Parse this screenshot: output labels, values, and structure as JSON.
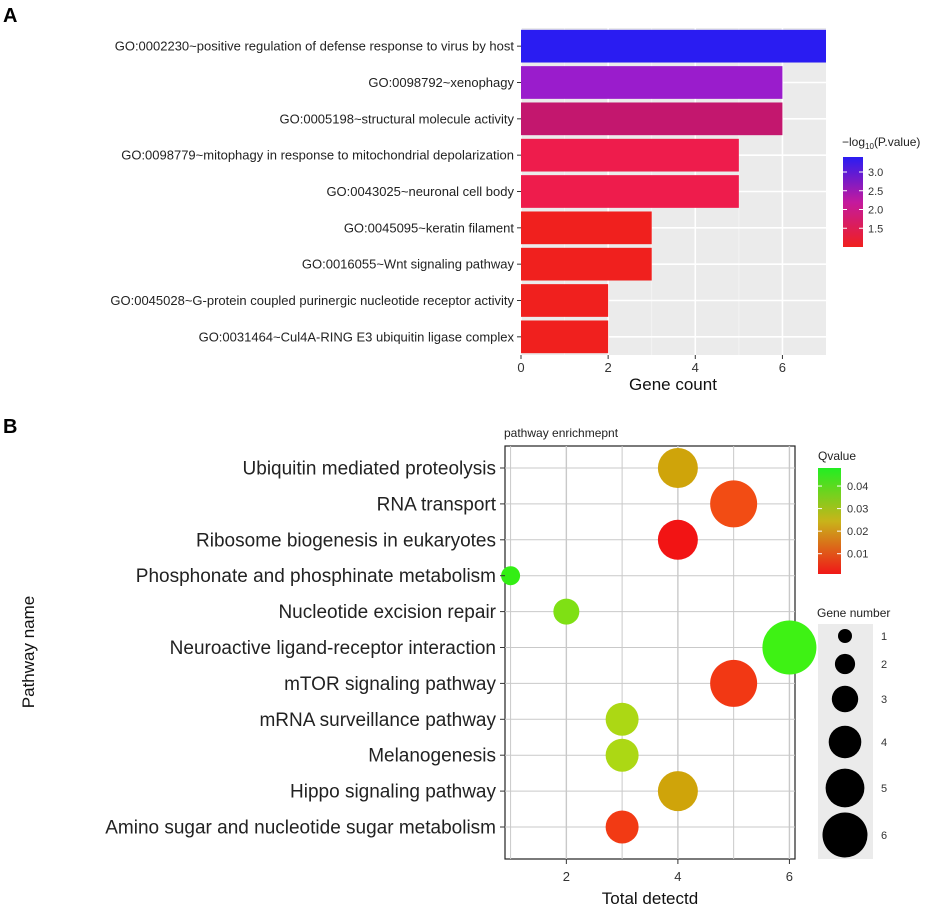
{
  "panels": {
    "a": "A",
    "b": "B"
  },
  "chart_data": [
    {
      "type": "bar",
      "orientation": "horizontal",
      "categories": [
        "GO:0002230~positive regulation of defense response to virus by host",
        "GO:0098792~xenophagy",
        "GO:0005198~structural molecule activity",
        "GO:0098779~mitophagy in response to mitochondrial depolarization",
        "GO:0043025~neuronal cell body",
        "GO:0045095~keratin filament",
        "GO:0016055~Wnt signaling pathway",
        "GO:0045028~G-protein coupled purinergic nucleotide receptor activity",
        "GO:0031464~Cul4A-RING E3 ubiquitin ligase complex"
      ],
      "values": [
        7,
        6,
        6,
        5,
        5,
        3,
        3,
        2,
        2
      ],
      "neg_log10_pvalue": [
        3.4,
        2.9,
        2.2,
        1.5,
        1.5,
        1.2,
        1.2,
        1.2,
        1.2
      ],
      "colors": [
        "#2a1cf2",
        "#9a1ccc",
        "#c3176e",
        "#ee1c4c",
        "#ee1c4c",
        "#f0201e",
        "#f0201e",
        "#f0201e",
        "#f0201e"
      ],
      "xlabel": "Gene count",
      "xlim": [
        0,
        7
      ],
      "xticks": [
        "0",
        "2",
        "4",
        "6"
      ],
      "legend": {
        "title_prefix": "−log",
        "title_sub": "10",
        "title_suffix": "(P.value)",
        "ticks": [
          "3.0",
          "2.5",
          "2.0",
          "1.5"
        ],
        "tick_values": [
          3.0,
          2.5,
          2.0,
          1.5
        ],
        "range": [
          1.0,
          3.4
        ],
        "gradient": [
          "#2a1cf2",
          "#c31a9e",
          "#f0201e"
        ],
        "position": "right"
      }
    },
    {
      "type": "scatter",
      "title": "pathway enrichmepnt",
      "xlabel": "Total detectd",
      "ylabel": "Pathway name",
      "xlim": [
        0.9,
        6.1
      ],
      "xticks": [
        "2",
        "4",
        "6"
      ],
      "categories": [
        "Ubiquitin mediated proteolysis",
        "RNA transport",
        "Ribosome biogenesis in eukaryotes",
        "Phosphonate and phosphinate metabolism",
        "Nucleotide excision repair",
        "Neuroactive ligand-receptor interaction",
        "mTOR signaling pathway",
        "mRNA surveillance pathway",
        "Melanogenesis",
        "Hippo signaling pathway",
        "Amino sugar and nucleotide sugar metabolism"
      ],
      "x": [
        4,
        5,
        4,
        1,
        2,
        6,
        5,
        3,
        3,
        4,
        3
      ],
      "qvalue": [
        0.028,
        0.016,
        0.004,
        0.046,
        0.044,
        0.046,
        0.012,
        0.038,
        0.038,
        0.028,
        0.014
      ],
      "colors": [
        "#cfa40a",
        "#f24c14",
        "#f21414",
        "#33ee14",
        "#7fe014",
        "#3ef214",
        "#f23814",
        "#acd814",
        "#acd814",
        "#cfa40a",
        "#f23a14"
      ],
      "gene_number": [
        4,
        5,
        4,
        1,
        2,
        6,
        5,
        3,
        3,
        4,
        3
      ],
      "legend_q": {
        "title": "Qvalue",
        "ticks": [
          "0.04",
          "0.03",
          "0.02",
          "0.01"
        ],
        "tick_values": [
          0.04,
          0.03,
          0.02,
          0.01
        ],
        "range": [
          0.001,
          0.048
        ],
        "gradient": [
          "#22ee22",
          "#c8b41a",
          "#f01818"
        ]
      },
      "legend_size": {
        "title": "Gene number",
        "labels": [
          "1",
          "2",
          "3",
          "4",
          "5",
          "6"
        ],
        "values": [
          1,
          2,
          3,
          4,
          5,
          6
        ]
      }
    }
  ]
}
